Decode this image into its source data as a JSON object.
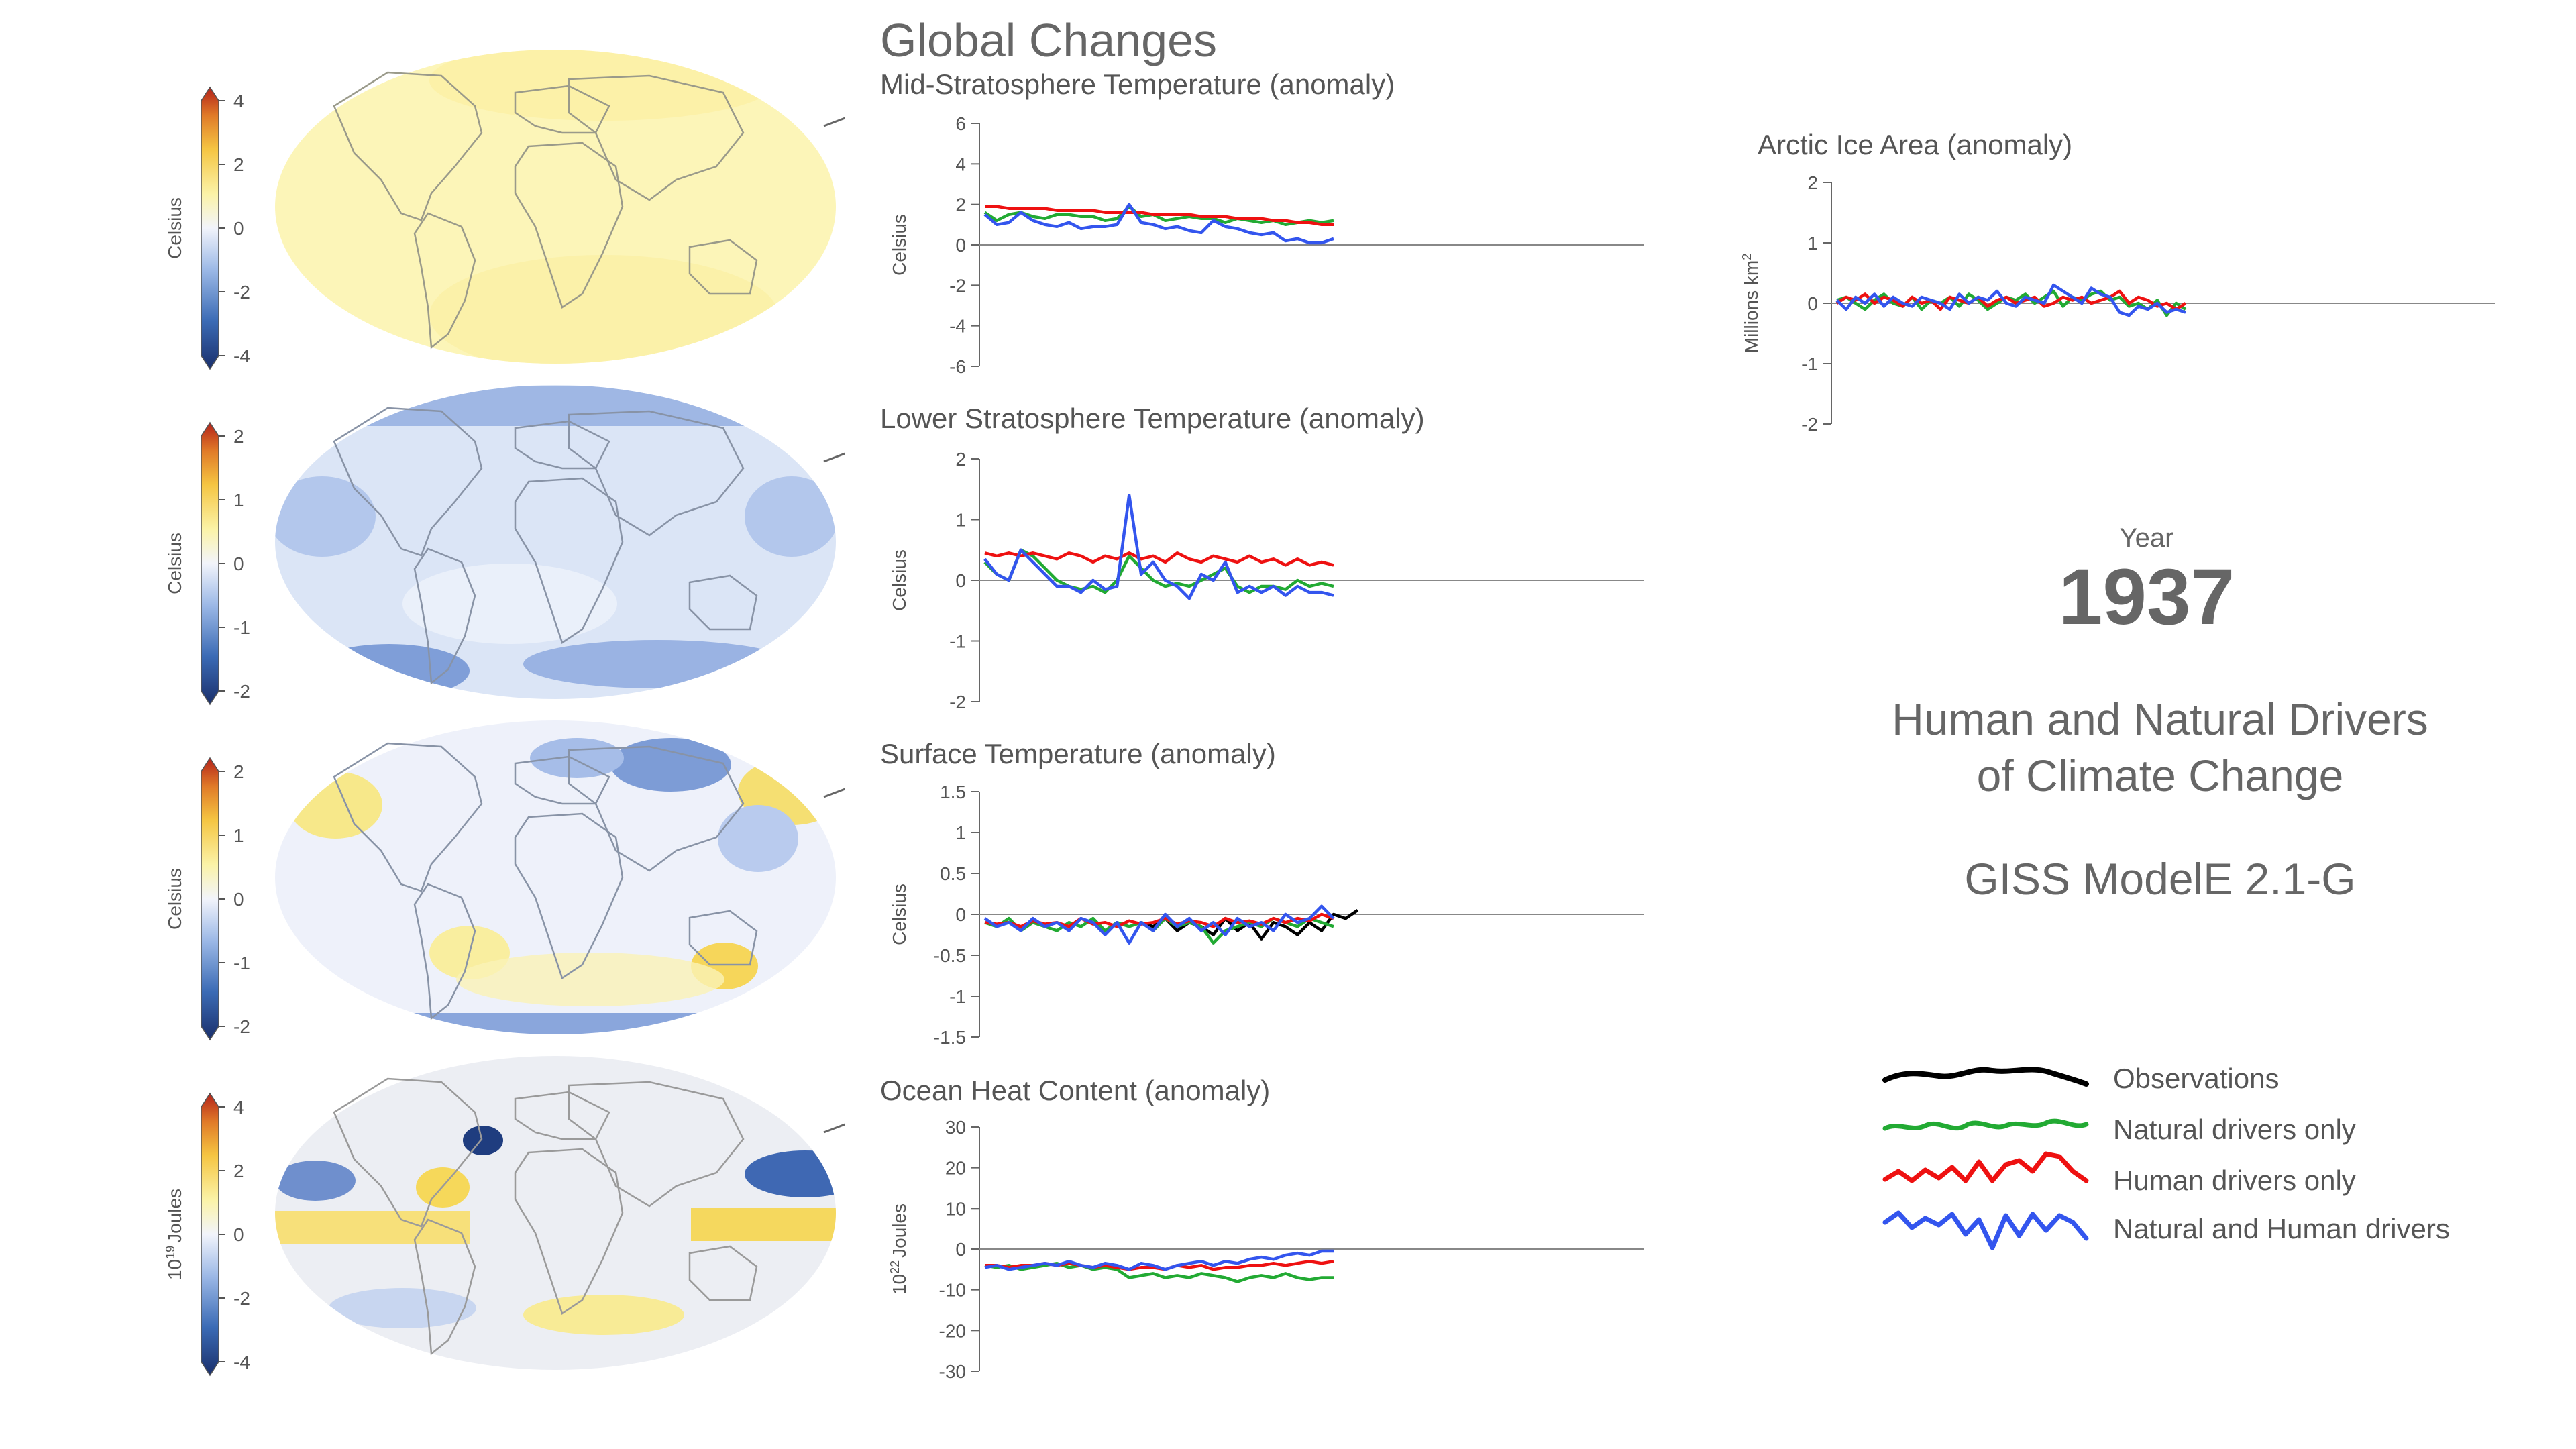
{
  "header": {
    "title": "Global Changes"
  },
  "year": {
    "label": "Year",
    "value": "1937"
  },
  "subtitle": {
    "line1": "Human and Natural Drivers",
    "line2": "of Climate Change"
  },
  "model": "GISS ModelE 2.1-G",
  "colors": {
    "observations": "#000000",
    "natural": "#22aa33",
    "human": "#ee1111",
    "both": "#3355ee",
    "colorbar": [
      "#1a2f6b",
      "#3b6bb5",
      "#9bb8e6",
      "#f2f4fb",
      "#fbf3a8",
      "#f5c542",
      "#e07a28",
      "#b3221a"
    ]
  },
  "legend": [
    {
      "key": "observations",
      "label": "Observations"
    },
    {
      "key": "natural",
      "label": "Natural drivers only"
    },
    {
      "key": "human",
      "label": "Human drivers only"
    },
    {
      "key": "both",
      "label": "Natural and Human drivers"
    }
  ],
  "maps": [
    {
      "id": "mid-strat",
      "colorbar_label": "Celsius",
      "ticks": [
        "4",
        "2",
        "0",
        "-2",
        "-4"
      ]
    },
    {
      "id": "lower-strat",
      "colorbar_label": "Celsius",
      "ticks": [
        "2",
        "1",
        "0",
        "-1",
        "-2"
      ]
    },
    {
      "id": "surface",
      "colorbar_label": "Celsius",
      "ticks": [
        "2",
        "1",
        "0",
        "-1",
        "-2"
      ]
    },
    {
      "id": "ocean",
      "colorbar_label_prefix": "10",
      "colorbar_label_sup": "19",
      "colorbar_label_suffix": "Joules",
      "ticks": [
        "4",
        "2",
        "0",
        "-2",
        "-4"
      ]
    }
  ],
  "chart_data": [
    {
      "id": "mid-strat",
      "type": "line",
      "title": "Mid-Stratosphere Temperature (anomaly)",
      "ylabel": "Celsius",
      "ylim": [
        -6,
        6
      ],
      "yticks": [
        "6",
        "4",
        "2",
        "0",
        "-2",
        "-4",
        "-6"
      ],
      "series": [
        {
          "key": "natural",
          "values": [
            1.6,
            1.2,
            1.5,
            1.6,
            1.4,
            1.3,
            1.5,
            1.5,
            1.4,
            1.4,
            1.2,
            1.3,
            1.9,
            1.4,
            1.5,
            1.2,
            1.3,
            1.4,
            1.3,
            1.3,
            1.1,
            1.3,
            1.2,
            1.1,
            1.2,
            1.0,
            1.1,
            1.2,
            1.1,
            1.2
          ]
        },
        {
          "key": "human",
          "values": [
            1.9,
            1.9,
            1.8,
            1.8,
            1.8,
            1.8,
            1.7,
            1.7,
            1.7,
            1.7,
            1.6,
            1.6,
            1.6,
            1.6,
            1.5,
            1.5,
            1.5,
            1.5,
            1.4,
            1.4,
            1.4,
            1.3,
            1.3,
            1.3,
            1.2,
            1.2,
            1.1,
            1.1,
            1.0,
            1.0
          ]
        },
        {
          "key": "both",
          "values": [
            1.5,
            1.0,
            1.1,
            1.6,
            1.2,
            1.0,
            0.9,
            1.1,
            0.8,
            0.9,
            0.9,
            1.0,
            2.0,
            1.1,
            1.0,
            0.8,
            0.9,
            0.7,
            0.6,
            1.2,
            0.9,
            0.8,
            0.6,
            0.5,
            0.6,
            0.2,
            0.3,
            0.1,
            0.1,
            0.3
          ]
        }
      ]
    },
    {
      "id": "lower-strat",
      "type": "line",
      "title": "Lower Stratosphere Temperature (anomaly)",
      "ylabel": "Celsius",
      "ylim": [
        -2,
        2
      ],
      "yticks": [
        "2",
        "1",
        "0",
        "-1",
        "-2"
      ],
      "series": [
        {
          "key": "natural",
          "values": [
            0.3,
            0.1,
            0.0,
            0.5,
            0.4,
            0.2,
            0.0,
            -0.1,
            -0.15,
            -0.1,
            -0.2,
            0.0,
            0.4,
            0.2,
            0.0,
            -0.1,
            -0.05,
            -0.1,
            0.0,
            0.1,
            0.2,
            -0.1,
            -0.2,
            -0.1,
            -0.1,
            -0.15,
            0.0,
            -0.1,
            -0.05,
            -0.1
          ]
        },
        {
          "key": "human",
          "values": [
            0.45,
            0.4,
            0.45,
            0.4,
            0.45,
            0.4,
            0.35,
            0.45,
            0.4,
            0.3,
            0.4,
            0.35,
            0.45,
            0.35,
            0.4,
            0.3,
            0.45,
            0.35,
            0.3,
            0.4,
            0.35,
            0.3,
            0.4,
            0.3,
            0.35,
            0.25,
            0.35,
            0.25,
            0.3,
            0.25
          ]
        },
        {
          "key": "both",
          "values": [
            0.35,
            0.1,
            0.0,
            0.5,
            0.3,
            0.1,
            -0.1,
            -0.1,
            -0.2,
            0.0,
            -0.15,
            -0.1,
            1.4,
            0.1,
            0.3,
            0.0,
            -0.1,
            -0.3,
            0.1,
            0.0,
            0.3,
            -0.2,
            -0.1,
            -0.2,
            -0.1,
            -0.25,
            -0.1,
            -0.2,
            -0.2,
            -0.25
          ]
        }
      ]
    },
    {
      "id": "surface",
      "type": "line",
      "title": "Surface Temperature (anomaly)",
      "ylabel": "Celsius",
      "ylim": [
        -1.5,
        1.5
      ],
      "yticks": [
        "1.5",
        "1",
        "0.5",
        "0",
        "-0.5",
        "-1",
        "-1.5"
      ],
      "series": [
        {
          "key": "observations",
          "start": 13,
          "values": [
            -0.1,
            -0.15,
            -0.05,
            -0.2,
            -0.1,
            -0.15,
            -0.25,
            -0.05,
            -0.2,
            -0.1,
            -0.3,
            -0.1,
            -0.15,
            -0.25,
            -0.1,
            -0.2,
            0.0,
            -0.05,
            0.05
          ]
        },
        {
          "key": "natural",
          "values": [
            -0.1,
            -0.15,
            -0.05,
            -0.2,
            -0.1,
            -0.15,
            -0.2,
            -0.1,
            -0.15,
            -0.05,
            -0.2,
            -0.1,
            -0.15,
            -0.1,
            -0.2,
            -0.05,
            -0.15,
            -0.1,
            -0.15,
            -0.35,
            -0.2,
            -0.15,
            -0.1,
            -0.15,
            -0.05,
            -0.1,
            -0.15,
            -0.05,
            -0.1,
            -0.15
          ]
        },
        {
          "key": "human",
          "values": [
            -0.1,
            -0.12,
            -0.1,
            -0.15,
            -0.08,
            -0.12,
            -0.1,
            -0.15,
            -0.05,
            -0.12,
            -0.1,
            -0.15,
            -0.08,
            -0.12,
            -0.1,
            -0.05,
            -0.12,
            -0.08,
            -0.1,
            -0.15,
            -0.05,
            -0.1,
            -0.08,
            -0.12,
            -0.05,
            -0.1,
            -0.05,
            -0.08,
            0.0,
            -0.05
          ]
        },
        {
          "key": "both",
          "values": [
            -0.05,
            -0.15,
            -0.1,
            -0.2,
            -0.05,
            -0.15,
            -0.1,
            -0.2,
            -0.05,
            -0.1,
            -0.25,
            -0.1,
            -0.35,
            -0.1,
            -0.2,
            0.0,
            -0.15,
            -0.05,
            -0.2,
            -0.1,
            -0.25,
            -0.05,
            -0.15,
            -0.1,
            -0.2,
            0.0,
            -0.1,
            -0.05,
            0.1,
            -0.05
          ]
        }
      ]
    },
    {
      "id": "ocean",
      "type": "line",
      "title": "Ocean Heat Content (anomaly)",
      "ylabel_prefix": "10",
      "ylabel_sup": "22",
      "ylabel_suffix": "Joules",
      "ylim": [
        -30,
        30
      ],
      "yticks": [
        "30",
        "20",
        "10",
        "0",
        "-10",
        "-20",
        "-30"
      ],
      "series": [
        {
          "key": "natural",
          "values": [
            -4,
            -4.5,
            -4,
            -5,
            -4.5,
            -4,
            -3.5,
            -4.5,
            -4,
            -5,
            -4.5,
            -5,
            -7,
            -6.5,
            -6,
            -7,
            -6.5,
            -7,
            -6,
            -6.5,
            -7,
            -8,
            -7,
            -6.5,
            -7,
            -6,
            -7,
            -7.5,
            -7,
            -7
          ]
        },
        {
          "key": "human",
          "values": [
            -4,
            -4,
            -4.5,
            -4,
            -4,
            -3.5,
            -4,
            -3.5,
            -4,
            -4.5,
            -4,
            -4.5,
            -5,
            -4.5,
            -4.5,
            -5,
            -4,
            -4.5,
            -4,
            -5,
            -4.5,
            -4.5,
            -4,
            -4,
            -3.5,
            -4,
            -3.5,
            -3,
            -3.5,
            -3
          ]
        },
        {
          "key": "both",
          "values": [
            -4.5,
            -4,
            -5,
            -4.5,
            -4,
            -3.5,
            -4,
            -3,
            -4,
            -4.5,
            -3.5,
            -4,
            -5,
            -3.5,
            -4,
            -5,
            -4,
            -3.5,
            -3,
            -4,
            -3,
            -3.5,
            -2.5,
            -2,
            -2.5,
            -1.5,
            -1,
            -1.5,
            -0.5,
            -0.5
          ]
        }
      ]
    },
    {
      "id": "arctic",
      "type": "line",
      "title": "Arctic Ice Area (anomaly)",
      "ylabel": "Millions km",
      "ylabel_sup": "2",
      "ylim": [
        -2,
        2
      ],
      "yticks": [
        "2",
        "1",
        "0",
        "-1",
        "-2"
      ],
      "series": [
        {
          "key": "natural",
          "values": [
            0.05,
            0.1,
            0.0,
            -0.1,
            0.05,
            0.15,
            0.0,
            -0.05,
            0.1,
            -0.1,
            0.05,
            0.0,
            0.1,
            -0.05,
            0.15,
            0.05,
            -0.1,
            0.0,
            0.1,
            0.05,
            0.15,
            0.0,
            0.1,
            0.2,
            -0.05,
            0.1,
            0.05,
            0.15,
            0.2,
            0.05,
            0.1,
            -0.05,
            0.0,
            -0.1,
            0.05,
            -0.2,
            0.0,
            -0.1
          ]
        },
        {
          "key": "human",
          "values": [
            0.0,
            0.1,
            0.05,
            0.15,
            0.0,
            0.1,
            0.05,
            -0.05,
            0.1,
            0.0,
            0.05,
            -0.1,
            0.1,
            0.05,
            0.0,
            0.1,
            -0.05,
            0.05,
            0.1,
            0.0,
            0.05,
            0.1,
            -0.05,
            0.0,
            0.1,
            0.05,
            0.1,
            0.0,
            0.05,
            0.1,
            0.2,
            0.0,
            0.1,
            0.05,
            -0.05,
            0.0,
            -0.1,
            0.0
          ]
        },
        {
          "key": "both",
          "values": [
            0.05,
            -0.1,
            0.1,
            0.0,
            0.15,
            -0.05,
            0.1,
            0.0,
            -0.05,
            0.1,
            0.05,
            0.0,
            -0.1,
            0.15,
            0.0,
            0.1,
            0.05,
            0.2,
            0.0,
            -0.05,
            0.1,
            0.05,
            0.0,
            0.3,
            0.2,
            0.1,
            0.0,
            0.25,
            0.15,
            0.1,
            -0.15,
            -0.2,
            -0.05,
            -0.1,
            0.0,
            -0.15,
            -0.1,
            -0.15
          ]
        }
      ]
    }
  ]
}
